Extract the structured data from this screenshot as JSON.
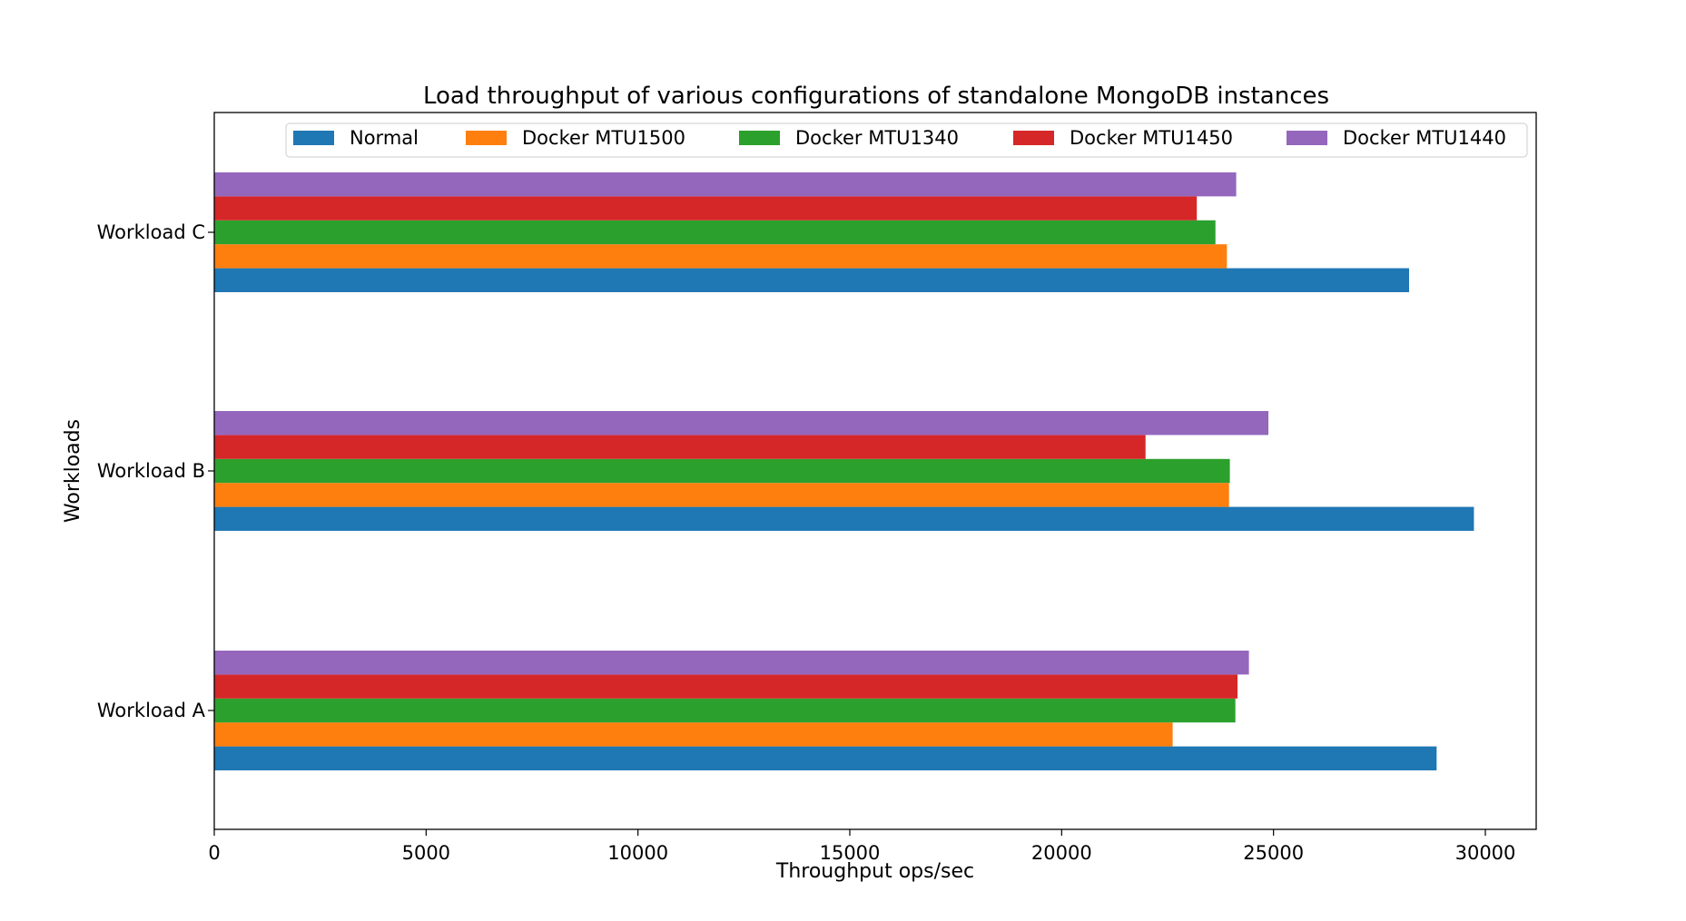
{
  "chart_data": {
    "type": "bar",
    "orientation": "horizontal",
    "title": "Load throughput of various configurations of standalone MongoDB instances",
    "xlabel": "Throughput ops/sec",
    "ylabel": "Workloads",
    "xlim": [
      0,
      31200
    ],
    "xticks": [
      0,
      5000,
      10000,
      15000,
      20000,
      25000,
      30000
    ],
    "grid": false,
    "legend_position": "top",
    "categories": [
      "Workload A",
      "Workload B",
      "Workload C"
    ],
    "series": [
      {
        "name": "Normal",
        "color": "#1f77b4",
        "values": [
          28850,
          29730,
          28200
        ]
      },
      {
        "name": "Docker MTU1500",
        "color": "#ff7f0e",
        "values": [
          22620,
          23950,
          23900
        ]
      },
      {
        "name": "Docker MTU1340",
        "color": "#2ca02c",
        "values": [
          24100,
          23970,
          23630
        ]
      },
      {
        "name": "Docker MTU1450",
        "color": "#d62728",
        "values": [
          24150,
          21980,
          23190
        ]
      },
      {
        "name": "Docker MTU1440",
        "color": "#9467bd",
        "values": [
          24420,
          24880,
          24120
        ]
      }
    ]
  }
}
